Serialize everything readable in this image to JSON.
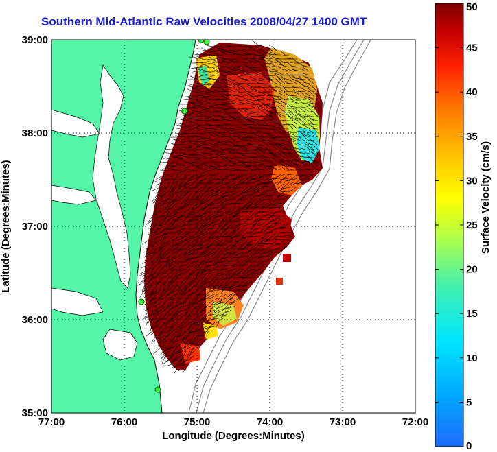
{
  "title": "Southern Mid-Atlantic Raw Velocities 2008/04/27 1400 GMT",
  "map": {
    "x_label": "Longitude (Degrees:Minutes)",
    "y_label": "Latitude (Degrees:Minutes)",
    "x_ticks": [
      "77:00",
      "76:00",
      "75:00",
      "74:00",
      "73:00",
      "72:00"
    ],
    "y_ticks": [
      "39:00",
      "38:00",
      "37:00",
      "36:00",
      "35:00"
    ],
    "land_color": "#55f5a8",
    "grid": "dotted"
  },
  "colorbar": {
    "label": "Surface Velocity (cm/s)",
    "ticks": [
      "0",
      "5",
      "10",
      "15",
      "20",
      "25",
      "30",
      "35",
      "40",
      "45",
      "50"
    ],
    "min": 0,
    "max": 50,
    "colormap": "jet"
  },
  "radar_sites": 5
}
